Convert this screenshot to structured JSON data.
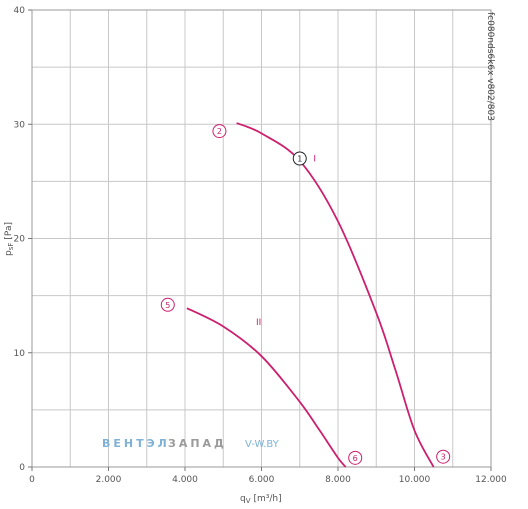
{
  "chart_data": {
    "type": "line",
    "xlabel": "q",
    "xlabel_sub": "V",
    "xlabel_unit": "[m³/h]",
    "ylabel": "p",
    "ylabel_sub": "sF",
    "ylabel_unit": "[Pa]",
    "xlim": [
      0,
      12000
    ],
    "ylim": [
      0,
      40
    ],
    "xticks": [
      0,
      2000,
      4000,
      6000,
      8000,
      10000,
      12000
    ],
    "xtick_labels": [
      "0",
      "2.000",
      "4.000",
      "6.000",
      "8.000",
      "10.000",
      "12.000"
    ],
    "yticks": [
      0,
      10,
      20,
      30,
      40
    ],
    "ytick_labels": [
      "0",
      "10",
      "20",
      "30",
      "40"
    ],
    "grid": true,
    "curve_color": "#cc1f6e",
    "series": [
      {
        "name": "I",
        "x": [
          5350,
          6000,
          7000,
          8000,
          9000,
          9500,
          10000,
          10500
        ],
        "y": [
          30.1,
          29.2,
          26.8,
          21.5,
          13.5,
          8.5,
          3.2,
          0
        ]
      },
      {
        "name": "II",
        "x": [
          4050,
          5000,
          6000,
          7000,
          7500,
          8000,
          8200
        ],
        "y": [
          13.9,
          12.3,
          9.7,
          5.7,
          3.3,
          0.8,
          0
        ]
      }
    ],
    "markers": [
      {
        "label": "2",
        "x": 4900,
        "y": 29.4
      },
      {
        "label": "3",
        "x": 10750,
        "y": 0.9
      },
      {
        "label": "5",
        "x": 3550,
        "y": 14.2
      },
      {
        "label": "6",
        "x": 8450,
        "y": 0.8
      },
      {
        "label": "1",
        "x": 7000,
        "y": 27.0
      }
    ],
    "model_code": "fc080nds6k6x v802/803",
    "watermark": {
      "part1": "ВЕНТЭЛ",
      "part2": "ЗАПАД",
      "site": "V-W.BY"
    }
  }
}
